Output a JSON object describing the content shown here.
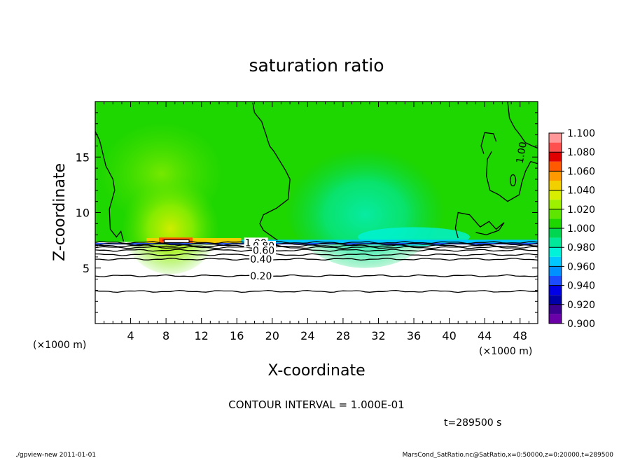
{
  "chart_data": {
    "type": "heatmap",
    "title": "saturation ratio",
    "xlabel": "X-coordinate",
    "ylabel": "Z-coordinate",
    "x_unit": "(×1000 m)",
    "y_unit": "(×1000 m)",
    "xlim": [
      0,
      50
    ],
    "ylim": [
      0,
      20
    ],
    "x_ticks": [
      4,
      8,
      12,
      16,
      20,
      24,
      28,
      32,
      36,
      40,
      44,
      48
    ],
    "y_ticks": [
      5,
      10,
      15
    ],
    "colorbar": {
      "labels": [
        "1.100",
        "1.080",
        "1.060",
        "1.040",
        "1.020",
        "1.000",
        "0.980",
        "0.960",
        "0.940",
        "0.920",
        "0.900"
      ],
      "min": 0.9,
      "max": 1.1,
      "bins": [
        {
          "from": 1.09,
          "to": 1.1,
          "color": "#ff9999"
        },
        {
          "from": 1.08,
          "to": 1.09,
          "color": "#ff5050"
        },
        {
          "from": 1.07,
          "to": 1.08,
          "color": "#e00000"
        },
        {
          "from": 1.06,
          "to": 1.07,
          "color": "#ff5a00"
        },
        {
          "from": 1.05,
          "to": 1.06,
          "color": "#ff9900"
        },
        {
          "from": 1.04,
          "to": 1.05,
          "color": "#f2d000"
        },
        {
          "from": 1.03,
          "to": 1.04,
          "color": "#d8ee00"
        },
        {
          "from": 1.02,
          "to": 1.03,
          "color": "#9cf000"
        },
        {
          "from": 1.01,
          "to": 1.02,
          "color": "#5ee600"
        },
        {
          "from": 1.0,
          "to": 1.01,
          "color": "#1ed600"
        },
        {
          "from": 0.99,
          "to": 1.0,
          "color": "#00d650"
        },
        {
          "from": 0.98,
          "to": 0.99,
          "color": "#00e89a"
        },
        {
          "from": 0.97,
          "to": 0.98,
          "color": "#00f2d8"
        },
        {
          "from": 0.96,
          "to": 0.97,
          "color": "#00c8ff"
        },
        {
          "from": 0.95,
          "to": 0.96,
          "color": "#0090ff"
        },
        {
          "from": 0.94,
          "to": 0.95,
          "color": "#1c4cff"
        },
        {
          "from": 0.93,
          "to": 0.94,
          "color": "#0000e6"
        },
        {
          "from": 0.92,
          "to": 0.93,
          "color": "#0000a8"
        },
        {
          "from": 0.91,
          "to": 0.92,
          "color": "#3c0090"
        },
        {
          "from": 0.9,
          "to": 0.91,
          "color": "#6a00a8"
        }
      ]
    },
    "contour_interval_text": "CONTOUR INTERVAL = 1.000E-01",
    "contours": [
      {
        "label": "1.00",
        "z": 7.3
      },
      {
        "label": "0.80",
        "z": 7.0
      },
      {
        "label": "0.60",
        "z": 6.6
      },
      {
        "label": "0.40",
        "z": 5.8
      },
      {
        "label": "0.20",
        "z": 4.3
      },
      {
        "label": "",
        "z": 7.15
      },
      {
        "label": "",
        "z": 6.85
      },
      {
        "label": "",
        "z": 6.2
      },
      {
        "label": "",
        "z": 2.9
      }
    ],
    "contour_labels": [
      {
        "text": "1.00",
        "x": 16.9,
        "z": 7.3
      },
      {
        "text": "0.80",
        "x": 17.8,
        "z": 7.0
      },
      {
        "text": "0.60",
        "x": 17.8,
        "z": 6.6
      },
      {
        "text": "0.40",
        "x": 17.5,
        "z": 5.8
      },
      {
        "text": "0.20",
        "x": 17.5,
        "z": 4.3
      },
      {
        "text": "1.00",
        "x": 48.3,
        "z": 14.7
      }
    ],
    "regions_note": "Saturation ratio ~1.00–1.01 above z≈7.3 km, up to ~1.06 near x≈8 km at z≈7.5 km, down to ~0.97 near x≈31 km; below z≈7 km values < 0.90 (blank)"
  },
  "time_label": "t=289500 s",
  "footer_left": "./gpview-new   2011-01-01",
  "footer_right": "MarsCond_SatRatio.nc@SatRatio,x=0:50000,z=0:20000,t=289500"
}
